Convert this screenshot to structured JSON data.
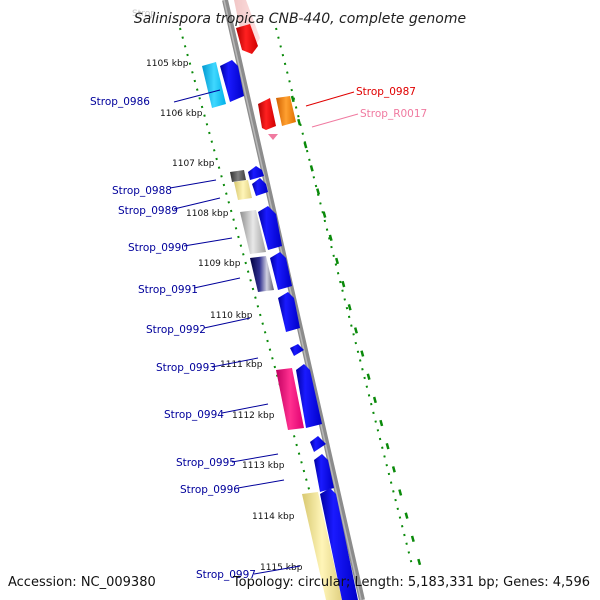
{
  "title": "Salinispora tropica CNB-440, complete genome",
  "accession": "Accession: NC_009380",
  "topology": "Topology: circular; Length: 5,183,331 bp; Genes: 4,596",
  "colors": {
    "backbone": "#8c8c8c",
    "gc_dots": "#0a8a0a",
    "forward_gene": "#0000ee",
    "left_labels": "#00009b",
    "strop_0987": "#e00000",
    "strop_r0017": "#f07aa0"
  },
  "kbp_ticks": [
    "1105 kbp",
    "1106 kbp",
    "1107 kbp",
    "1108 kbp",
    "1109 kbp",
    "1110 kbp",
    "1111 kbp",
    "1112 kbp",
    "1113 kbp",
    "1114 kbp",
    "1115 kbp"
  ],
  "left_labels": [
    "Strop_0986",
    "Strop_0988",
    "Strop_0989",
    "Strop_0990",
    "Strop_0991",
    "Strop_0992",
    "Strop_0993",
    "Strop_0994",
    "Strop_0995",
    "Strop_0996",
    "Strop_0997"
  ],
  "right_labels": [
    "Strop_0987",
    "Strop_R0017"
  ]
}
